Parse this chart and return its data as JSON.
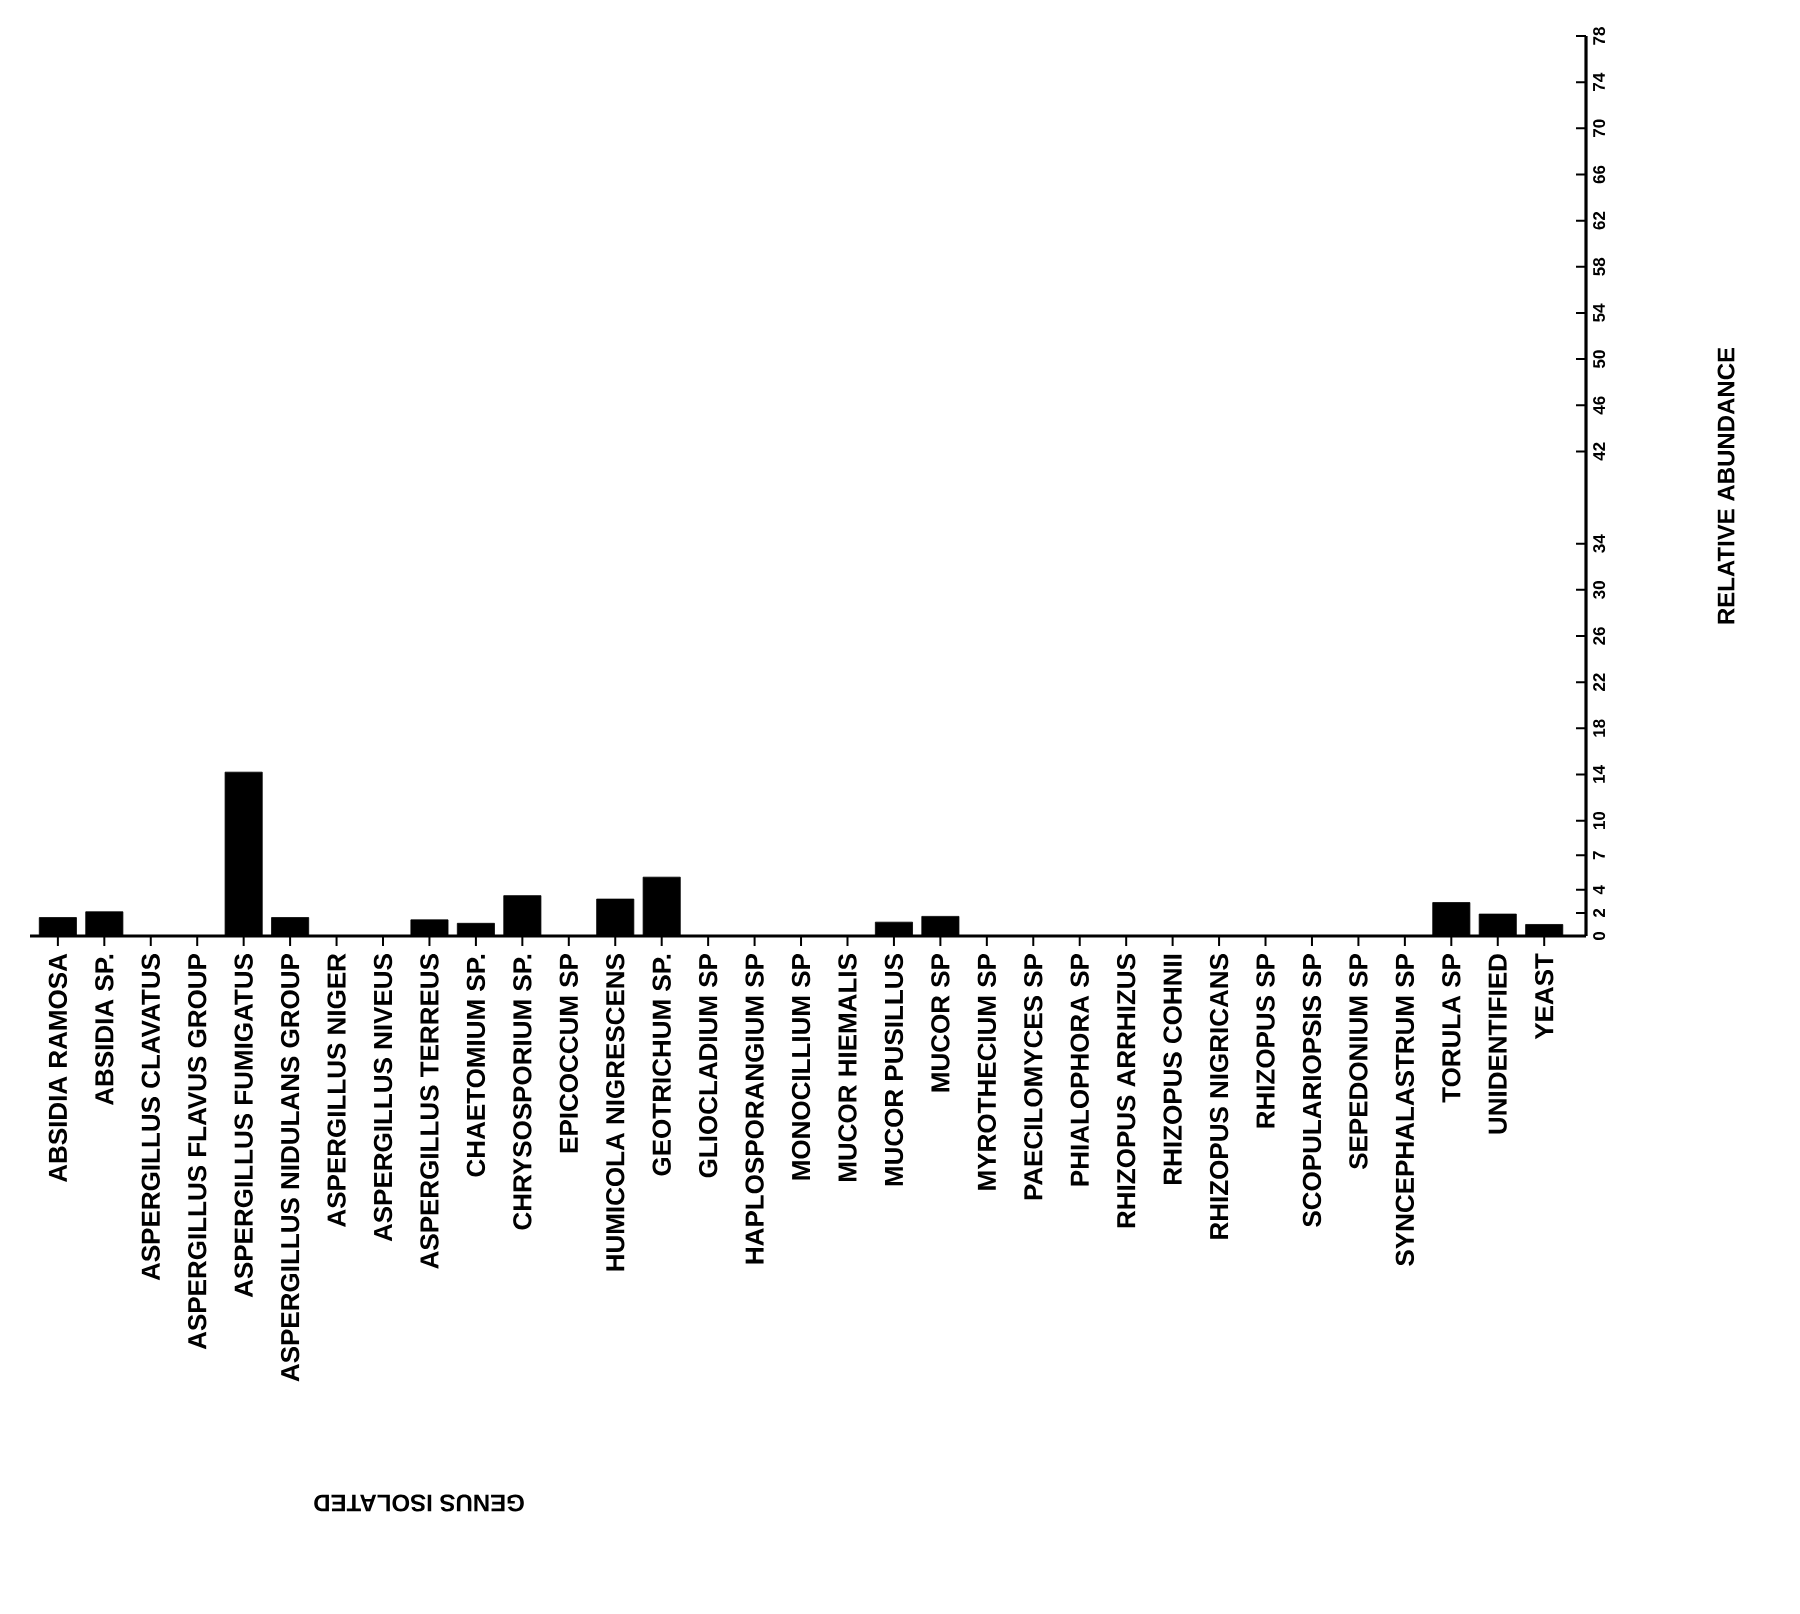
{
  "chart_data": {
    "type": "bar",
    "categories": [
      "ABSIDIA RAMOSA",
      "ABSIDIA SP.",
      "ASPERGILLUS CLAVATUS",
      "ASPERGILLUS FLAVUS GROUP",
      "ASPERGILLUS FUMIGATUS",
      "ASPERGILLUS NIDULANS GROUP",
      "ASPERGILLUS NIGER",
      "ASPERGILLUS NIVEUS",
      "ASPERGILLUS TERREUS",
      "CHAETOMIUM SP.",
      "CHRYSOSPORIUM SP.",
      "EPICOCCUM SP",
      "HUMICOLA NIGRESCENS",
      "GEOTRICHUM SP.",
      "GLIOCLADIUM SP",
      "HAPLOSPORANGIUM SP",
      "MONOCILLIUM SP",
      "MUCOR HIEMALIS",
      "MUCOR PUSILLUS",
      "MUCOR SP",
      "MYROTHECIUM SP",
      "PAECILOMYCES SP",
      "PHIALOPHORA SP",
      "RHIZOPUS ARRHIZUS",
      "RHIZOPUS COHNII",
      "RHIZOPUS NIGRICANS",
      "RHIZOPUS SP",
      "SCOPULARIOPSIS SP",
      "SEPEDONIUM SP",
      "SYNCEPHALASTRUM SP",
      "TORULA SP",
      "UNIDENTIFIED",
      "YEAST"
    ],
    "values": [
      1.6,
      2.1,
      0,
      0,
      14.2,
      1.6,
      0,
      0,
      1.4,
      1.1,
      3.5,
      0,
      3.2,
      5.1,
      0,
      0,
      0,
      0,
      1.2,
      1.7,
      0,
      0,
      0,
      0,
      0,
      0,
      0,
      0,
      0,
      0,
      2.9,
      1.9,
      1.0
    ],
    "color": "#000000",
    "xlabel": "GENUS ISOLATED",
    "ylabel": "RELATIVE ABUNDANCE",
    "ylim": [
      0,
      78
    ],
    "yticks": [
      0,
      2,
      4,
      7,
      10,
      14,
      18,
      22,
      26,
      30,
      34,
      42,
      46,
      50,
      54,
      58,
      62,
      66,
      70,
      74,
      78
    ]
  }
}
